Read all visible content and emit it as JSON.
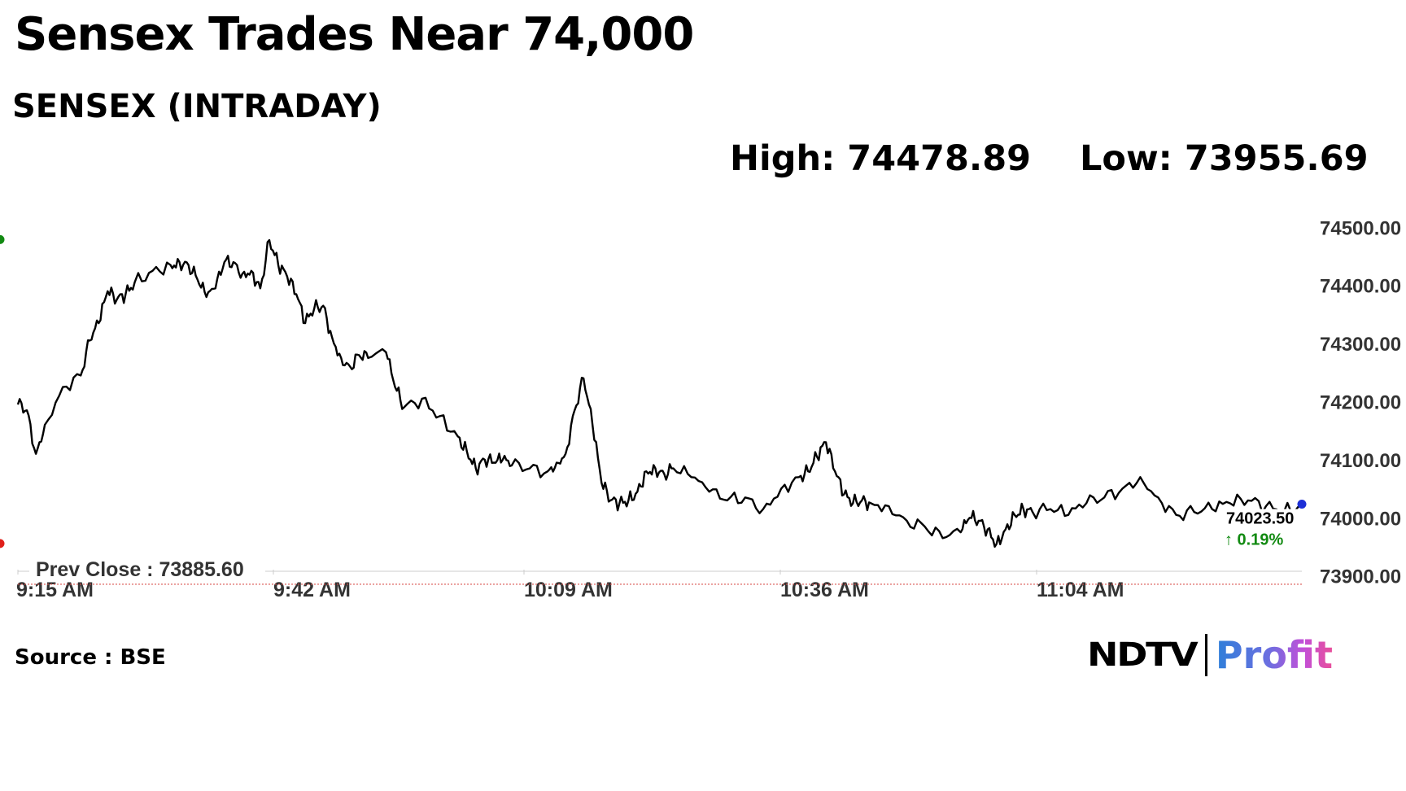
{
  "header": {
    "title": "Sensex Trades Near 74,000",
    "subtitle": "SENSEX (INTRADAY)",
    "high": "High: 74478.89",
    "low": "Low: 73955.69"
  },
  "footer": {
    "source": "Source : BSE",
    "brand_left": "NDTV",
    "brand_right": "Profit"
  },
  "colors": {
    "line": "#000000",
    "high_marker": "#128a12",
    "low_marker": "#e0201b",
    "last_marker": "#1d2fd6",
    "prev_close_line": "#d9534f",
    "change_up": "#128a12"
  },
  "chart_data": {
    "type": "line",
    "title": "SENSEX (INTRADAY)",
    "xlabel": "",
    "ylabel": "",
    "x_range": [
      "9:15 AM",
      "11:38 AM"
    ],
    "ylim": [
      73880,
      74520
    ],
    "y_ticks": [
      74500,
      74400,
      74300,
      74200,
      74100,
      74000,
      73900
    ],
    "y_tick_labels": [
      "74500.00",
      "74400.00",
      "74300.00",
      "74200.00",
      "74100.00",
      "74000.00",
      "73900.00"
    ],
    "x_tick_labels": [
      "9:15 AM",
      "9:42 AM",
      "10:09 AM",
      "10:36 AM",
      "11:04 AM"
    ],
    "grid": false,
    "prev_close": 73885.6,
    "prev_close_label": "Prev Close : 73885.60",
    "high": {
      "time": "9:43 AM",
      "value": 74478.89
    },
    "low": {
      "time": "11:04 AM",
      "value": 73955.69
    },
    "last": {
      "value": 74023.5,
      "label": "74023.50",
      "change": "0.19%"
    },
    "series": [
      {
        "x": [
          "9:15",
          "9:16",
          "9:17",
          "9:18",
          "9:20",
          "9:22",
          "9:23",
          "9:24",
          "9:25",
          "9:26",
          "9:27",
          "9:28",
          "9:30",
          "9:32",
          "9:33",
          "9:34",
          "9:35",
          "9:36",
          "9:37",
          "9:38",
          "9:39",
          "9:40",
          "9:41",
          "9:42",
          "9:43",
          "9:44",
          "9:45",
          "9:46",
          "9:47",
          "9:48",
          "9:49",
          "9:50",
          "9:51",
          "9:52",
          "9:53",
          "9:54",
          "9:56",
          "9:57",
          "9:58",
          "10:00",
          "10:02",
          "10:04",
          "10:05",
          "10:06",
          "10:07",
          "10:08",
          "10:09",
          "10:10",
          "10:12",
          "10:14",
          "10:15",
          "10:16",
          "10:17",
          "10:18",
          "10:19",
          "10:20",
          "10:21",
          "10:22",
          "10:23",
          "10:24",
          "10:25",
          "10:26",
          "10:27",
          "10:28",
          "10:30",
          "10:32",
          "10:34",
          "10:36",
          "10:38",
          "10:40",
          "10:42",
          "10:43",
          "10:44",
          "10:45",
          "10:46",
          "10:47",
          "10:48",
          "10:49",
          "10:50",
          "10:52",
          "10:54",
          "10:56",
          "10:58",
          "11:00",
          "11:01",
          "11:02",
          "11:03",
          "11:04",
          "11:05",
          "11:06",
          "11:07",
          "11:08",
          "11:10",
          "11:12",
          "11:14",
          "11:16",
          "11:18",
          "11:20",
          "11:22",
          "11:24",
          "11:26",
          "11:28",
          "11:30",
          "11:32",
          "11:34",
          "11:36",
          "11:38"
        ],
        "values": [
          74195,
          74185,
          74110,
          74160,
          74225,
          74245,
          74305,
          74335,
          74390,
          74375,
          74385,
          74405,
          74425,
          74435,
          74440,
          74435,
          74410,
          74380,
          74395,
          74440,
          74440,
          74420,
          74425,
          74395,
          74478,
          74435,
          74415,
          74385,
          74335,
          74360,
          74365,
          74310,
          74275,
          74260,
          74280,
          74275,
          74285,
          74225,
          74190,
          74205,
          74175,
          74140,
          74115,
          74085,
          74100,
          74095,
          74100,
          74090,
          74085,
          74080,
          74095,
          74110,
          74185,
          74240,
          74160,
          74060,
          74030,
          74025,
          74030,
          74045,
          74080,
          74085,
          74075,
          74085,
          74070,
          74045,
          74030,
          74035,
          74015,
          74050,
          74070,
          74080,
          74105,
          74130,
          74080,
          74040,
          74025,
          74030,
          74025,
          74020,
          73995,
          73985,
          73965,
          73975,
          74000,
          73995,
          73980,
          73955,
          73980,
          74005,
          74015,
          74010,
          74015,
          74005,
          74025,
          74035,
          74050,
          74070,
          74035,
          74005,
          74010,
          74015,
          74025,
          74030,
          74020,
          74010,
          74023.5
        ]
      }
    ]
  }
}
